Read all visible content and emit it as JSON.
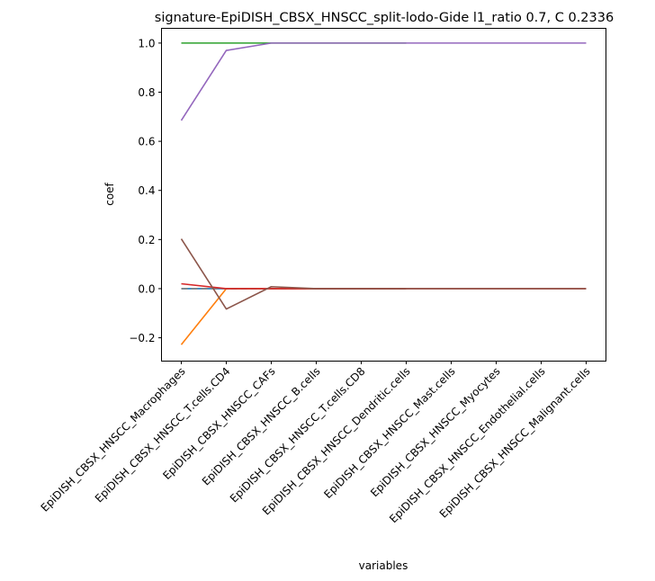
{
  "chart_data": {
    "type": "line",
    "title": "signature-EpiDISH_CBSX_HNSCC_split-lodo-Gide l1_ratio 0.7, C 0.2336",
    "xlabel": "variables",
    "ylabel": "coef",
    "categories": [
      "EpiDISH_CBSX_HNSCC_Macrophages",
      "EpiDISH_CBSX_HNSCC_T.cells.CD4",
      "EpiDISH_CBSX_HNSCC_CAFs",
      "EpiDISH_CBSX_HNSCC_B.cells",
      "EpiDISH_CBSX_HNSCC_T.cells.CD8",
      "EpiDISH_CBSX_HNSCC_Dendritic.cells",
      "EpiDISH_CBSX_HNSCC_Mast.cells",
      "EpiDISH_CBSX_HNSCC_Myocytes",
      "EpiDISH_CBSX_HNSCC_Endothelial.cells",
      "EpiDISH_CBSX_HNSCC_Malignant.cells"
    ],
    "ylim": [
      -0.295,
      1.06
    ],
    "yticks": [
      -0.2,
      0.0,
      0.2,
      0.4,
      0.6,
      0.8,
      1.0
    ],
    "ytick_labels": [
      "−0.2",
      "0.0",
      "0.2",
      "0.4",
      "0.6",
      "0.8",
      "1.0"
    ],
    "grid": false,
    "legend": "none",
    "series": [
      {
        "color": "#1f77b4",
        "dash": "",
        "values": [
          0.0,
          0.0,
          0.0,
          0.0,
          0.0,
          0.0,
          null,
          null,
          null,
          null
        ]
      },
      {
        "color": "#ff7f0e",
        "dash": "",
        "values": [
          -0.228,
          0.0,
          0.0,
          0.0,
          0.0,
          0.0,
          null,
          null,
          null,
          null
        ]
      },
      {
        "color": "#2ca02c",
        "dash": "",
        "values": [
          1.0,
          1.0,
          1.0,
          1.0,
          1.0,
          1.0,
          null,
          null,
          null,
          null
        ]
      },
      {
        "color": "#7f7f7f",
        "dash": "7,4",
        "values": [
          0.0,
          0.0,
          0.0,
          0.0,
          0.0,
          0.0,
          null,
          null,
          null,
          null
        ]
      },
      {
        "color": "#d62728",
        "dash": "",
        "values": [
          0.02,
          0.0,
          0.0,
          0.0,
          0.0,
          0.0,
          0.0,
          0.0,
          0.0,
          0.0
        ]
      },
      {
        "color": "#9467bd",
        "dash": "",
        "values": [
          0.685,
          0.97,
          1.0,
          1.0,
          1.0,
          1.0,
          1.0,
          1.0,
          1.0,
          1.0
        ]
      },
      {
        "color": "#8c564b",
        "dash": "",
        "values": [
          0.203,
          -0.083,
          0.008,
          0.0,
          0.0,
          0.0,
          0.0,
          0.0,
          0.0,
          0.0
        ]
      }
    ]
  }
}
